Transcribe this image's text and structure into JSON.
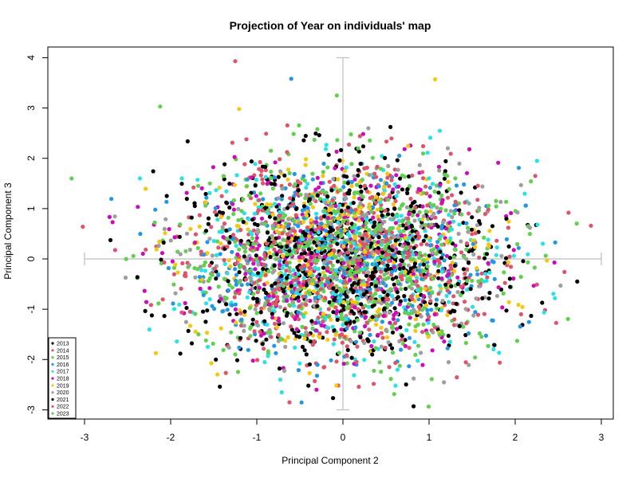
{
  "chart_data": {
    "type": "scatter",
    "title": "Projection of Year on individuals' map",
    "xlabel": "Principal Component 2",
    "ylabel": "Principal Component 3",
    "xlim": [
      -3.4,
      3.1
    ],
    "ylim": [
      -3.25,
      4.2
    ],
    "xticks": [
      "-3",
      "-2",
      "-1",
      "0",
      "1",
      "2",
      "3"
    ],
    "yticks": [
      "-3",
      "-2",
      "-1",
      "0",
      "1",
      "2",
      "3",
      "4"
    ],
    "grid": false,
    "legend_position": "bottom-left",
    "reference_cross": {
      "x_range": [
        -3.0,
        3.0
      ],
      "y_range": [
        -3.0,
        4.0
      ],
      "color": "#bebebe"
    },
    "series": [
      {
        "name": "2013",
        "color": "#000000"
      },
      {
        "name": "2014",
        "color": "#DF536B"
      },
      {
        "name": "2015",
        "color": "#61D04F"
      },
      {
        "name": "2016",
        "color": "#2297E6"
      },
      {
        "name": "2017",
        "color": "#28E2E5"
      },
      {
        "name": "2018",
        "color": "#CD0BBC"
      },
      {
        "name": "2019",
        "color": "#F5C710"
      },
      {
        "name": "2020",
        "color": "#9E9E9E"
      },
      {
        "name": "2021",
        "color": "#000000"
      },
      {
        "name": "2022",
        "color": "#DF536B"
      },
      {
        "name": "2023",
        "color": "#61D04F"
      }
    ],
    "notable_points": [
      {
        "x": -1.25,
        "y": 3.93,
        "series": "2014"
      },
      {
        "x": -0.6,
        "y": 3.58,
        "series": "2016"
      },
      {
        "x": 1.07,
        "y": 3.57,
        "series": "2019"
      },
      {
        "x": -0.07,
        "y": 3.25,
        "series": "2015"
      },
      {
        "x": -3.15,
        "y": 1.6,
        "series": "2015"
      },
      {
        "x": -3.02,
        "y": 0.64,
        "series": "2014"
      },
      {
        "x": 2.88,
        "y": 0.66,
        "series": "2014"
      },
      {
        "x": 2.72,
        "y": -0.45,
        "series": "2013"
      },
      {
        "x": 0.82,
        "y": -2.93,
        "series": "2013"
      },
      {
        "x": -0.62,
        "y": -2.85,
        "series": "2014"
      }
    ],
    "point_cloud": {
      "approx_count": 3500,
      "distribution": "bivariate normal",
      "x_center": 0.0,
      "x_sd": 0.9,
      "y_center": 0.0,
      "y_sd": 0.95
    }
  }
}
